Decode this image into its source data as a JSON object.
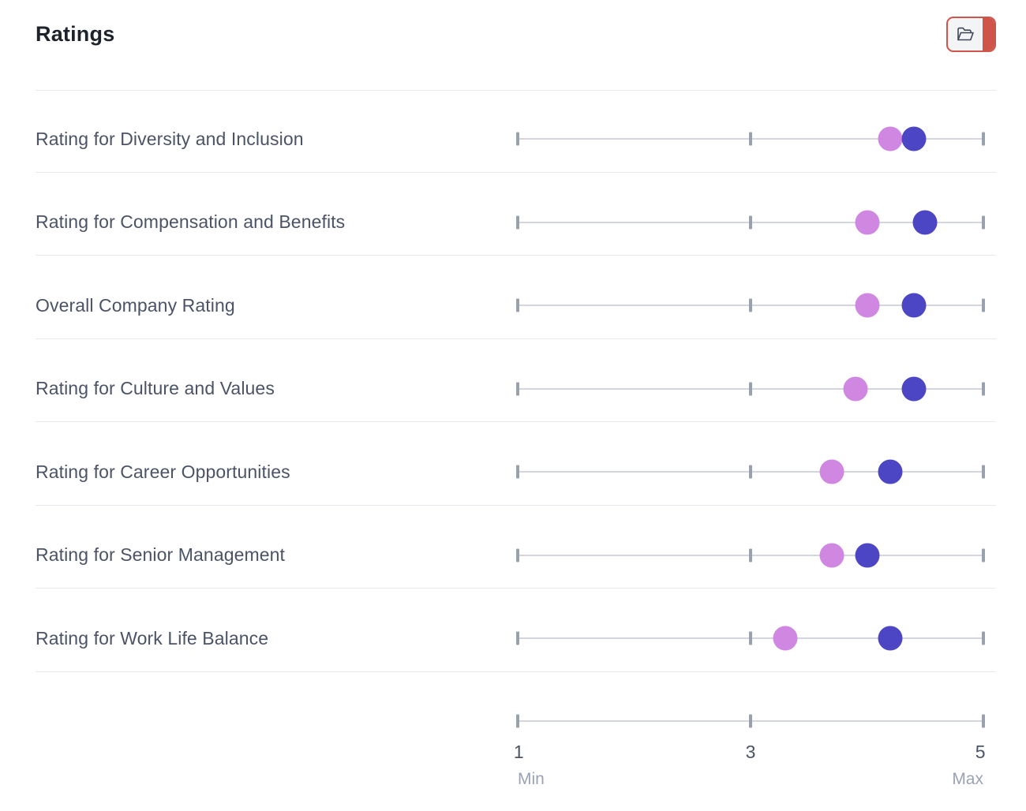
{
  "header": {
    "title": "Ratings",
    "toolbar": {
      "folder_button": {
        "icon": "folder-icon",
        "accent_color": "#cf5449",
        "background_color": "#f3f4f6"
      }
    }
  },
  "chart_data": {
    "type": "scatter",
    "variant": "dumbbell-dot-plot",
    "title": "Ratings",
    "categories": [
      "Rating for Diversity and Inclusion",
      "Rating for Compensation and Benefits",
      "Overall Company Rating",
      "Rating for Culture and Values",
      "Rating for Career Opportunities",
      "Rating for Senior Management",
      "Rating for Work Life Balance"
    ],
    "series": [
      {
        "name": "light-purple-dot",
        "color": "#cf87e2",
        "values": [
          4.2,
          4.0,
          4.0,
          3.9,
          3.7,
          3.7,
          3.3
        ]
      },
      {
        "name": "dark-indigo-dot",
        "color": "#4c46c4",
        "values": [
          4.4,
          4.5,
          4.4,
          4.4,
          4.2,
          4.0,
          4.2
        ]
      }
    ],
    "xlim": [
      1,
      5
    ],
    "x_ticks": [
      1,
      3,
      5
    ],
    "axis": {
      "tick_labels": [
        "1",
        "3",
        "5"
      ],
      "min_label": "Min",
      "max_label": "Max"
    },
    "grid": false,
    "legend": false
  },
  "colors": {
    "track_line": "#d3d7dd",
    "tick": "#99a1ae",
    "separator": "#e8e8ef",
    "row_label_text": "#4b5366",
    "title_text": "#1e222b",
    "minmax_text": "#9aa3b4"
  }
}
